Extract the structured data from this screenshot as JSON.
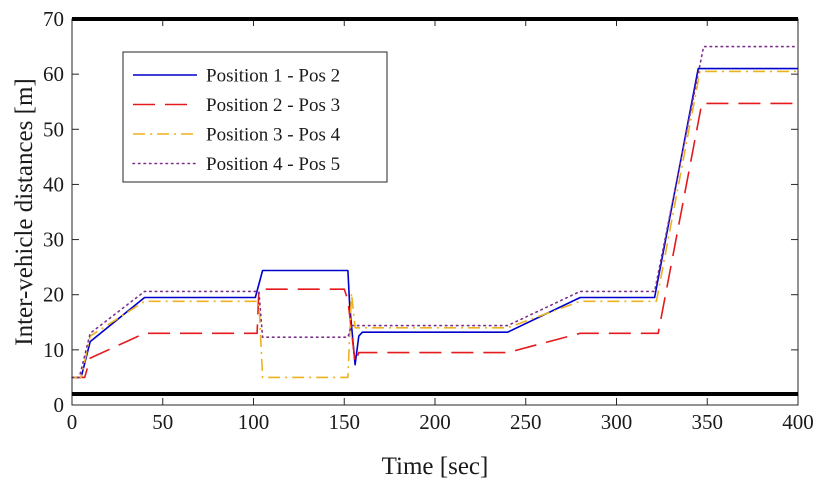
{
  "chart_data": {
    "type": "line",
    "title": "",
    "xlabel": "Time [sec]",
    "ylabel": "Inter-vehicle distances [m]",
    "xlim": [
      0,
      400
    ],
    "ylim": [
      0,
      70
    ],
    "xticks": [
      0,
      50,
      100,
      150,
      200,
      250,
      300,
      350,
      400
    ],
    "yticks": [
      0,
      10,
      20,
      30,
      40,
      50,
      60,
      70
    ],
    "grid": false,
    "legend_position": "top-left",
    "series": [
      {
        "name": "Position 1 - Pos 2",
        "color": "#0000cc",
        "dash": "solid",
        "points": [
          [
            0,
            5
          ],
          [
            5,
            5
          ],
          [
            10,
            11.5
          ],
          [
            40,
            19.5
          ],
          [
            101,
            19.5
          ],
          [
            105,
            24.4
          ],
          [
            152,
            24.4
          ],
          [
            153,
            18
          ],
          [
            156,
            7.3
          ],
          [
            158,
            12.5
          ],
          [
            160,
            13.2
          ],
          [
            240,
            13.2
          ],
          [
            280,
            19.5
          ],
          [
            321,
            19.5
          ],
          [
            345,
            61
          ],
          [
            400,
            61
          ]
        ]
      },
      {
        "name": "Position 2 - Pos 3",
        "color": "#e41a1c",
        "dash": "long-dash",
        "points": [
          [
            0,
            5
          ],
          [
            7,
            5
          ],
          [
            10,
            8.5
          ],
          [
            40,
            13
          ],
          [
            102,
            13
          ],
          [
            103,
            21
          ],
          [
            150,
            21
          ],
          [
            152,
            19
          ],
          [
            156,
            7.7
          ],
          [
            158,
            9.5
          ],
          [
            240,
            9.5
          ],
          [
            280,
            13
          ],
          [
            323,
            13
          ],
          [
            347,
            54.7
          ],
          [
            400,
            54.7
          ]
        ]
      },
      {
        "name": "Position 3 - Pos 4",
        "color": "#edb120",
        "dash": "dash-dot",
        "points": [
          [
            0,
            5
          ],
          [
            5,
            5
          ],
          [
            10,
            12.5
          ],
          [
            40,
            18.8
          ],
          [
            103,
            18.8
          ],
          [
            105,
            5
          ],
          [
            152,
            5
          ],
          [
            154,
            20.3
          ],
          [
            156,
            14
          ],
          [
            240,
            14
          ],
          [
            280,
            18.8
          ],
          [
            322,
            18.8
          ],
          [
            346,
            60.5
          ],
          [
            400,
            60.5
          ]
        ]
      },
      {
        "name": "Position 4 - Pos 5",
        "color": "#7e2f8e",
        "dash": "dotted",
        "points": [
          [
            0,
            5
          ],
          [
            4,
            5
          ],
          [
            10,
            13
          ],
          [
            40,
            20.6
          ],
          [
            103,
            20.6
          ],
          [
            105,
            12.3
          ],
          [
            152,
            12.3
          ],
          [
            154,
            14.4
          ],
          [
            240,
            14.4
          ],
          [
            280,
            20.6
          ],
          [
            321,
            20.6
          ],
          [
            348,
            65
          ],
          [
            400,
            65
          ]
        ]
      }
    ],
    "reference_lines": [
      {
        "orientation": "horizontal",
        "value": 2,
        "color": "#000000"
      },
      {
        "orientation": "horizontal",
        "value": 70,
        "color": "#000000"
      }
    ]
  }
}
